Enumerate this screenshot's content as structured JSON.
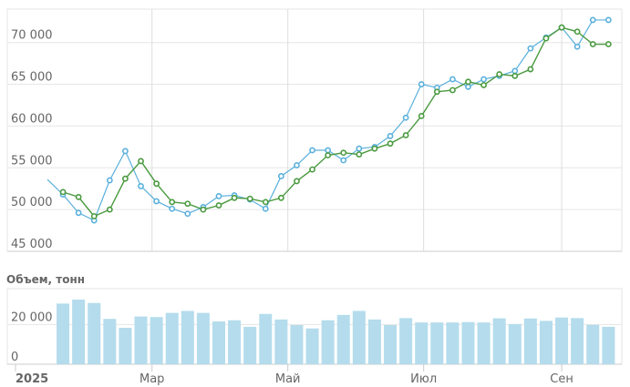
{
  "volume_title": "Объем, тонн",
  "chart_data": [
    {
      "type": "line",
      "x": [
        "2025-01-13",
        "2025-01-20",
        "2025-01-27",
        "2025-02-03",
        "2025-02-10",
        "2025-02-17",
        "2025-02-24",
        "2025-03-03",
        "2025-03-10",
        "2025-03-17",
        "2025-03-24",
        "2025-03-31",
        "2025-04-07",
        "2025-04-14",
        "2025-04-21",
        "2025-04-28",
        "2025-05-05",
        "2025-05-12",
        "2025-05-19",
        "2025-05-26",
        "2025-06-02",
        "2025-06-09",
        "2025-06-16",
        "2025-06-23",
        "2025-06-30",
        "2025-07-07",
        "2025-07-14",
        "2025-07-21",
        "2025-07-28",
        "2025-08-04",
        "2025-08-11",
        "2025-08-18",
        "2025-08-25",
        "2025-09-01",
        "2025-09-08",
        "2025-09-15",
        "2025-09-22"
      ],
      "series": [
        {
          "color": "#5ab0dc",
          "values": [
            53600,
            51800,
            49600,
            48700,
            53500,
            57000,
            52800,
            51000,
            50100,
            49500,
            50300,
            51600,
            51700,
            51200,
            50100,
            54000,
            55300,
            57100,
            57100,
            55900,
            57300,
            57500,
            58800,
            61000,
            65000,
            64600,
            65600,
            64700,
            65600,
            66000,
            66600,
            69300,
            70600,
            71800,
            69500,
            72700,
            72700
          ]
        },
        {
          "color": "#4a9a3f",
          "values": [
            51200,
            52100,
            51500,
            49200,
            50000,
            53700,
            55800,
            53100,
            50900,
            50700,
            50000,
            50500,
            51400,
            51300,
            50900,
            51400,
            53400,
            54800,
            56500,
            56800,
            56600,
            57300,
            57900,
            58900,
            61200,
            64100,
            64300,
            65300,
            64900,
            66200,
            66000,
            66800,
            70500,
            71800,
            71300,
            69800,
            69800
          ]
        }
      ],
      "ylim": [
        45000,
        74000
      ],
      "y_ticks": [
        45000,
        50000,
        55000,
        60000,
        65000,
        70000
      ],
      "y_tick_labels": [
        "45 000",
        "50 000",
        "55 000",
        "60 000",
        "65 000",
        "70 000"
      ],
      "grid": true
    },
    {
      "type": "bar",
      "title": "Объем, тонн",
      "color": "#b4dcec",
      "x": [
        "2025-01-20",
        "2025-01-27",
        "2025-02-03",
        "2025-02-10",
        "2025-02-17",
        "2025-02-24",
        "2025-03-03",
        "2025-03-10",
        "2025-03-17",
        "2025-03-24",
        "2025-03-31",
        "2025-04-07",
        "2025-04-14",
        "2025-04-21",
        "2025-04-28",
        "2025-05-05",
        "2025-05-12",
        "2025-05-19",
        "2025-05-26",
        "2025-06-02",
        "2025-06-09",
        "2025-06-16",
        "2025-06-23",
        "2025-06-30",
        "2025-07-07",
        "2025-07-14",
        "2025-07-21",
        "2025-07-28",
        "2025-08-04",
        "2025-08-11",
        "2025-08-18",
        "2025-08-25",
        "2025-09-01",
        "2025-09-08",
        "2025-09-15",
        "2025-09-22"
      ],
      "values": [
        30500,
        32500,
        30800,
        22800,
        18300,
        24000,
        23700,
        25800,
        26800,
        25800,
        21500,
        22100,
        18800,
        25300,
        22500,
        19700,
        18000,
        22100,
        24800,
        26800,
        22500,
        19700,
        23200,
        21000,
        21000,
        21000,
        21200,
        21000,
        23100,
        20200,
        23000,
        21800,
        23500,
        23200,
        19800,
        18800
      ],
      "ylim": [
        0,
        38000
      ],
      "y_ticks": [
        0,
        20000
      ],
      "y_tick_labels": [
        "0",
        "20 000"
      ]
    }
  ],
  "x_axis": {
    "ticks": [
      {
        "date": "2025-01-01",
        "label": "2025",
        "bold": true
      },
      {
        "date": "2025-03-01",
        "label": "Мар",
        "bold": false
      },
      {
        "date": "2025-05-01",
        "label": "Май",
        "bold": false
      },
      {
        "date": "2025-07-01",
        "label": "Июл",
        "bold": false
      },
      {
        "date": "2025-09-01",
        "label": "Сен",
        "bold": false
      }
    ]
  }
}
